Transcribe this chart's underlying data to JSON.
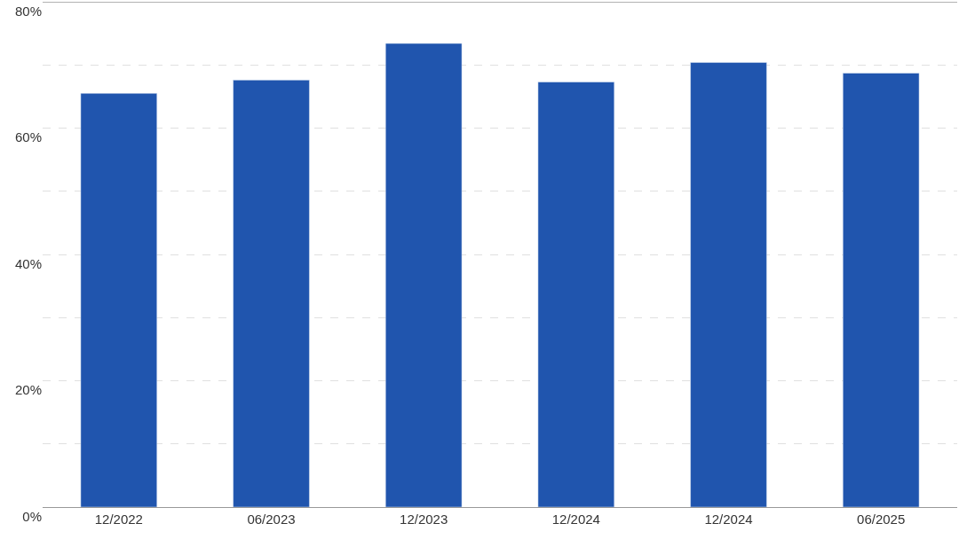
{
  "chart_data": {
    "type": "bar",
    "categories": [
      "12/2022",
      "06/2023",
      "12/2023",
      "12/2024",
      "12/2024",
      "06/2025"
    ],
    "values": [
      65.5,
      67.6,
      73.4,
      67.3,
      70.4,
      68.7
    ],
    "color": "#2055ae",
    "ylim": [
      0,
      80
    ],
    "yticks": [
      {
        "value": 0,
        "label": "0%"
      },
      {
        "value": 10,
        "label": null
      },
      {
        "value": 20,
        "label": "20%"
      },
      {
        "value": 30,
        "label": null
      },
      {
        "value": 40,
        "label": "40%"
      },
      {
        "value": 50,
        "label": null
      },
      {
        "value": 60,
        "label": "60%"
      },
      {
        "value": 70,
        "label": null
      },
      {
        "value": 80,
        "label": "80%"
      }
    ],
    "grid": "y",
    "legend": false
  }
}
